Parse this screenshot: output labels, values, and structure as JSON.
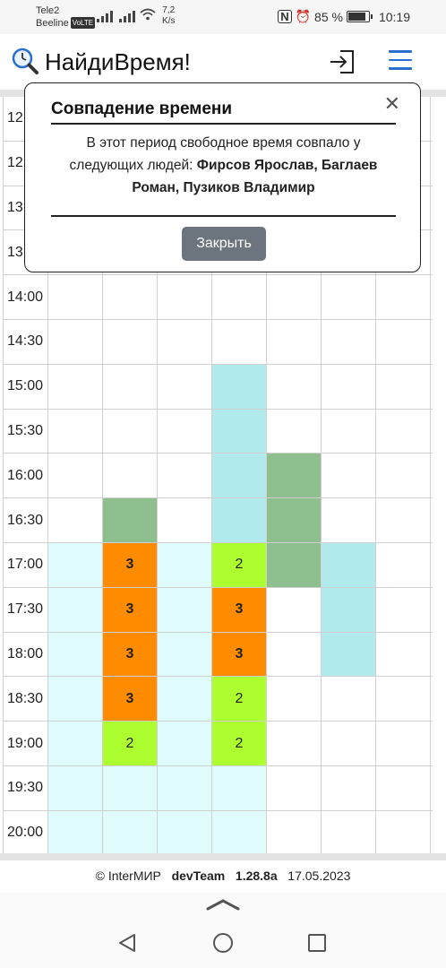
{
  "status_bar": {
    "carrier1": "Tele2",
    "carrier2": "Beeline",
    "volte": "VoLTE",
    "speed_value": "7,2",
    "speed_unit": "K/s",
    "battery": "85 %",
    "time": "10:19",
    "battery_level": 0.85
  },
  "header": {
    "title": "НайдиВремя!",
    "logo_icon": "search-clock-icon",
    "login_icon": "login-icon",
    "menu_icon": "hamburger-menu-icon"
  },
  "grid": {
    "rows": [
      {
        "time": "12:",
        "cells": [
          {
            "c": "",
            "t": ""
          },
          {
            "c": "",
            "t": ""
          },
          {
            "c": "",
            "t": ""
          },
          {
            "c": "",
            "t": ""
          },
          {
            "c": "",
            "t": ""
          },
          {
            "c": "",
            "t": ""
          },
          {
            "c": "",
            "t": ""
          }
        ]
      },
      {
        "time": "12:",
        "cells": [
          {
            "c": "",
            "t": ""
          },
          {
            "c": "",
            "t": ""
          },
          {
            "c": "",
            "t": ""
          },
          {
            "c": "",
            "t": ""
          },
          {
            "c": "",
            "t": ""
          },
          {
            "c": "",
            "t": ""
          },
          {
            "c": "",
            "t": ""
          }
        ]
      },
      {
        "time": "13:",
        "cells": [
          {
            "c": "",
            "t": ""
          },
          {
            "c": "",
            "t": ""
          },
          {
            "c": "",
            "t": ""
          },
          {
            "c": "",
            "t": ""
          },
          {
            "c": "",
            "t": ""
          },
          {
            "c": "",
            "t": ""
          },
          {
            "c": "",
            "t": ""
          }
        ]
      },
      {
        "time": "13:",
        "cells": [
          {
            "c": "",
            "t": ""
          },
          {
            "c": "",
            "t": ""
          },
          {
            "c": "",
            "t": ""
          },
          {
            "c": "",
            "t": ""
          },
          {
            "c": "",
            "t": ""
          },
          {
            "c": "",
            "t": ""
          },
          {
            "c": "",
            "t": ""
          }
        ]
      },
      {
        "time": "14:00",
        "cells": [
          {
            "c": "",
            "t": ""
          },
          {
            "c": "",
            "t": ""
          },
          {
            "c": "",
            "t": ""
          },
          {
            "c": "",
            "t": ""
          },
          {
            "c": "",
            "t": ""
          },
          {
            "c": "",
            "t": ""
          },
          {
            "c": "",
            "t": ""
          }
        ]
      },
      {
        "time": "14:30",
        "cells": [
          {
            "c": "",
            "t": ""
          },
          {
            "c": "",
            "t": ""
          },
          {
            "c": "",
            "t": ""
          },
          {
            "c": "",
            "t": ""
          },
          {
            "c": "",
            "t": ""
          },
          {
            "c": "",
            "t": ""
          },
          {
            "c": "",
            "t": ""
          }
        ]
      },
      {
        "time": "15:00",
        "cells": [
          {
            "c": "",
            "t": ""
          },
          {
            "c": "",
            "t": ""
          },
          {
            "c": "",
            "t": ""
          },
          {
            "c": "cyan",
            "t": ""
          },
          {
            "c": "",
            "t": ""
          },
          {
            "c": "",
            "t": ""
          },
          {
            "c": "",
            "t": ""
          }
        ]
      },
      {
        "time": "15:30",
        "cells": [
          {
            "c": "",
            "t": ""
          },
          {
            "c": "",
            "t": ""
          },
          {
            "c": "",
            "t": ""
          },
          {
            "c": "cyan",
            "t": ""
          },
          {
            "c": "",
            "t": ""
          },
          {
            "c": "",
            "t": ""
          },
          {
            "c": "",
            "t": ""
          }
        ]
      },
      {
        "time": "16:00",
        "cells": [
          {
            "c": "",
            "t": ""
          },
          {
            "c": "",
            "t": ""
          },
          {
            "c": "",
            "t": ""
          },
          {
            "c": "cyan",
            "t": ""
          },
          {
            "c": "green",
            "t": ""
          },
          {
            "c": "",
            "t": ""
          },
          {
            "c": "",
            "t": ""
          }
        ]
      },
      {
        "time": "16:30",
        "cells": [
          {
            "c": "",
            "t": ""
          },
          {
            "c": "green",
            "t": ""
          },
          {
            "c": "",
            "t": ""
          },
          {
            "c": "cyan",
            "t": ""
          },
          {
            "c": "green",
            "t": ""
          },
          {
            "c": "",
            "t": ""
          },
          {
            "c": "",
            "t": ""
          }
        ]
      },
      {
        "time": "17:00",
        "cells": [
          {
            "c": "lightcyan",
            "t": ""
          },
          {
            "c": "orange",
            "t": "3"
          },
          {
            "c": "lightcyan",
            "t": ""
          },
          {
            "c": "lime",
            "t": "2"
          },
          {
            "c": "green",
            "t": ""
          },
          {
            "c": "cyan",
            "t": ""
          },
          {
            "c": "",
            "t": ""
          }
        ]
      },
      {
        "time": "17:30",
        "cells": [
          {
            "c": "lightcyan",
            "t": ""
          },
          {
            "c": "orange",
            "t": "3"
          },
          {
            "c": "lightcyan",
            "t": ""
          },
          {
            "c": "orange",
            "t": "3"
          },
          {
            "c": "",
            "t": ""
          },
          {
            "c": "cyan",
            "t": ""
          },
          {
            "c": "",
            "t": ""
          }
        ]
      },
      {
        "time": "18:00",
        "cells": [
          {
            "c": "lightcyan",
            "t": ""
          },
          {
            "c": "orange",
            "t": "3"
          },
          {
            "c": "lightcyan",
            "t": ""
          },
          {
            "c": "orange",
            "t": "3"
          },
          {
            "c": "",
            "t": ""
          },
          {
            "c": "cyan",
            "t": ""
          },
          {
            "c": "",
            "t": ""
          }
        ]
      },
      {
        "time": "18:30",
        "cells": [
          {
            "c": "lightcyan",
            "t": ""
          },
          {
            "c": "orange",
            "t": "3"
          },
          {
            "c": "lightcyan",
            "t": ""
          },
          {
            "c": "lime",
            "t": "2"
          },
          {
            "c": "",
            "t": ""
          },
          {
            "c": "",
            "t": ""
          },
          {
            "c": "",
            "t": ""
          }
        ]
      },
      {
        "time": "19:00",
        "cells": [
          {
            "c": "lightcyan",
            "t": ""
          },
          {
            "c": "lime",
            "t": "2"
          },
          {
            "c": "lightcyan",
            "t": ""
          },
          {
            "c": "lime",
            "t": "2"
          },
          {
            "c": "",
            "t": ""
          },
          {
            "c": "",
            "t": ""
          },
          {
            "c": "",
            "t": ""
          }
        ]
      },
      {
        "time": "19:30",
        "cells": [
          {
            "c": "lightcyan",
            "t": ""
          },
          {
            "c": "lightcyan",
            "t": ""
          },
          {
            "c": "lightcyan",
            "t": ""
          },
          {
            "c": "lightcyan",
            "t": ""
          },
          {
            "c": "",
            "t": ""
          },
          {
            "c": "",
            "t": ""
          },
          {
            "c": "",
            "t": ""
          }
        ]
      },
      {
        "time": "20:00",
        "cells": [
          {
            "c": "lightcyan",
            "t": ""
          },
          {
            "c": "lightcyan",
            "t": ""
          },
          {
            "c": "lightcyan",
            "t": ""
          },
          {
            "c": "lightcyan",
            "t": ""
          },
          {
            "c": "",
            "t": ""
          },
          {
            "c": "",
            "t": ""
          },
          {
            "c": "",
            "t": ""
          }
        ]
      }
    ]
  },
  "modal": {
    "title": "Совпадение времени",
    "close_icon": "close-icon",
    "body_prefix": "В этот период свободное время совпало у следующих людей: ",
    "people": "Фирсов Ярослав, Баглаев Роман, Пузиков Владимир",
    "close_button": "Закрыть"
  },
  "footer": {
    "copyright": "© InterМИР",
    "team": "devTeam",
    "version": "1.28.8a",
    "date": "17.05.2023"
  },
  "colors": {
    "lightcyan": "#e0fbfc",
    "cyan": "#b2ebee",
    "green": "#8fbf8f",
    "orange": "#ff8c00",
    "lime": "#adff2f",
    "accent": "#2a6fd0",
    "button": "#6c757d"
  }
}
